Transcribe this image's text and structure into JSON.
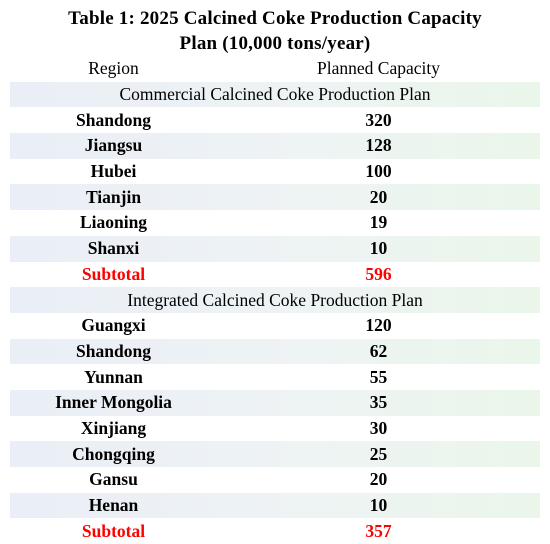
{
  "title_line1": "Table 1: 2025 Calcined Coke Production Capacity",
  "title_line2": "Plan (10,000 tons/year)",
  "headers": {
    "region": "Region",
    "capacity": "Planned Capacity"
  },
  "sections": [
    {
      "name": "Commercial Calcined Coke Production Plan",
      "rows": [
        {
          "region": "Shandong",
          "capacity": "320"
        },
        {
          "region": "Jiangsu",
          "capacity": "128"
        },
        {
          "region": "Hubei",
          "capacity": "100"
        },
        {
          "region": "Tianjin",
          "capacity": "20"
        },
        {
          "region": "Liaoning",
          "capacity": "19"
        },
        {
          "region": "Shanxi",
          "capacity": "10"
        }
      ],
      "subtotal_label": "Subtotal",
      "subtotal_value": "596"
    },
    {
      "name": "Integrated Calcined Coke Production Plan",
      "rows": [
        {
          "region": "Guangxi",
          "capacity": "120"
        },
        {
          "region": "Shandong",
          "capacity": "62"
        },
        {
          "region": "Yunnan",
          "capacity": "55"
        },
        {
          "region": "Inner Mongolia",
          "capacity": "35"
        },
        {
          "region": "Xinjiang",
          "capacity": "30"
        },
        {
          "region": "Chongqing",
          "capacity": "25"
        },
        {
          "region": "Gansu",
          "capacity": "20"
        },
        {
          "region": "Henan",
          "capacity": "10"
        }
      ],
      "subtotal_label": "Subtotal",
      "subtotal_value": "357"
    }
  ],
  "colors": {
    "subtotal": "#ff0000",
    "shaded_row": "#eaeef6"
  }
}
